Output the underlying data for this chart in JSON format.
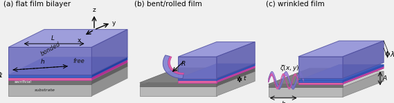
{
  "fig_width": 5.69,
  "fig_height": 1.49,
  "dpi": 100,
  "bg_color": "#f0f0f0",
  "panel_bg": "#e8e8e8",
  "titles": [
    "(a) flat film bilayer",
    "(b) bent/rolled film",
    "(c) wrinkled film"
  ],
  "title_fontsize": 7.5,
  "label_fontsize": 6.5,
  "colors": {
    "top_film": "#8080e0",
    "top_film_light": "#a0a0f0",
    "top_film_dark": "#6060b0",
    "layer1_pink": "#e060a0",
    "layer2_blue": "#4060c0",
    "substrate_gray": "#a0a0a0",
    "substrate_light": "#c8c8c8",
    "substrate_dark": "#808080",
    "sacrificial": "#606060",
    "arrow_color": "#1a1a1a",
    "text_color": "#1a1a1a",
    "dashed_color": "#303030",
    "white": "#ffffff",
    "wrinkle_highlight": "#cc4488"
  }
}
